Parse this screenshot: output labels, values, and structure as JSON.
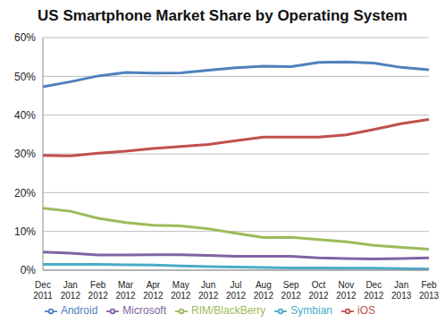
{
  "chart_data": {
    "type": "line",
    "title": "US Smartphone Market Share by Operating System",
    "categories": [
      "Dec 2011",
      "Jan 2012",
      "Feb 2012",
      "Mar 2012",
      "Apr 2012",
      "May 2012",
      "Jun 2012",
      "Jul 2012",
      "Aug 2012",
      "Sep 2012",
      "Oct 2012",
      "Nov 2012",
      "Dec 2012",
      "Jan 2013",
      "Feb 2013"
    ],
    "series": [
      {
        "name": "Android",
        "color": "#4f81bd",
        "values": [
          47.3,
          48.6,
          50.1,
          51.0,
          50.8,
          50.9,
          51.6,
          52.2,
          52.6,
          52.5,
          53.6,
          53.7,
          53.4,
          52.3,
          51.7
        ]
      },
      {
        "name": "iOS",
        "color": "#c0504d",
        "values": [
          29.6,
          29.5,
          30.2,
          30.7,
          31.4,
          31.9,
          32.4,
          33.4,
          34.3,
          34.3,
          34.3,
          34.9,
          36.3,
          37.8,
          38.9
        ]
      },
      {
        "name": "RIM/BlackBerry",
        "color": "#9bbb59",
        "values": [
          16.0,
          15.2,
          13.4,
          12.3,
          11.6,
          11.4,
          10.7,
          9.5,
          8.4,
          8.5,
          7.9,
          7.3,
          6.4,
          5.9,
          5.4
        ]
      },
      {
        "name": "Microsoft",
        "color": "#8064a2",
        "values": [
          4.7,
          4.4,
          3.9,
          3.9,
          4.0,
          4.0,
          3.8,
          3.6,
          3.6,
          3.6,
          3.2,
          3.0,
          2.9,
          3.0,
          3.2
        ]
      },
      {
        "name": "Symbian",
        "color": "#4bacc6",
        "values": [
          1.5,
          1.5,
          1.5,
          1.4,
          1.3,
          1.1,
          0.9,
          0.8,
          0.7,
          0.6,
          0.6,
          0.5,
          0.5,
          0.4,
          0.3
        ]
      }
    ],
    "ylim": [
      0,
      60
    ],
    "yticks": [
      {
        "value": 0,
        "label": "0%"
      },
      {
        "value": 10,
        "label": "10%"
      },
      {
        "value": 20,
        "label": "20%"
      },
      {
        "value": 30,
        "label": "30%"
      },
      {
        "value": 40,
        "label": "40%"
      },
      {
        "value": 50,
        "label": "50%"
      },
      {
        "value": 60,
        "label": "60%"
      }
    ],
    "grid": true,
    "legend": "bottom",
    "marker": "none"
  }
}
